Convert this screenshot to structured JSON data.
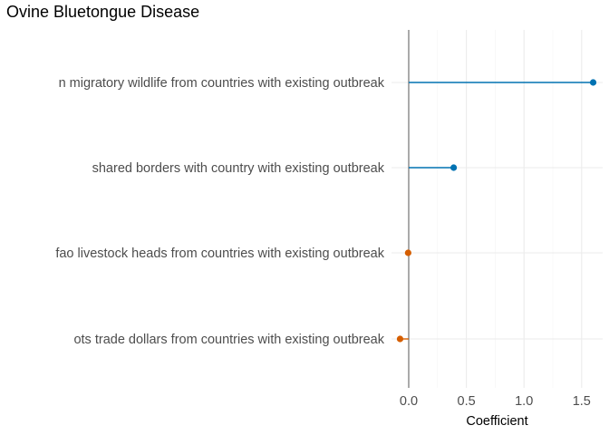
{
  "chart_data": {
    "type": "lollipop",
    "title": "Ovine Bluetongue Disease",
    "xlabel": "Coefficient",
    "ylabel": "",
    "xlim": [
      -0.08,
      1.68
    ],
    "xticks": [
      0.0,
      0.5,
      1.0,
      1.5
    ],
    "xtick_labels": [
      "0.0",
      "0.5",
      "1.0",
      "1.5"
    ],
    "grid": true,
    "legend": "none",
    "colors": {
      "positive": "#0072B2",
      "negative": "#D55E00",
      "zero_line": "#7f7f7f",
      "grid": "#ebebeb"
    },
    "categories": [
      "n migratory wildlife from countries with existing outbreak",
      "shared borders with country with existing outbreak",
      "fao livestock heads from countries with existing outbreak",
      "ots trade dollars from countries with existing outbreak"
    ],
    "values": [
      1.6,
      0.39,
      -0.005,
      -0.075
    ]
  }
}
